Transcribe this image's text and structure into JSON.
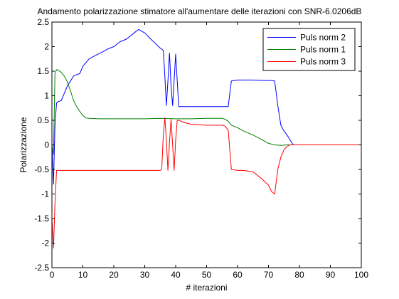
{
  "chart_data": {
    "type": "line",
    "title": "Andamento polarizzazione stimatore all'aumentare delle iterazioni con SNR-6.0206dB",
    "xlabel": "# iterazioni",
    "ylabel": "Polarizzazione",
    "xlim": [
      0,
      100
    ],
    "ylim": [
      -2.5,
      2.5
    ],
    "xticks": [
      0,
      10,
      20,
      30,
      40,
      50,
      60,
      70,
      80,
      90,
      100
    ],
    "yticks": [
      -2.5,
      -2,
      -1.5,
      -1,
      -0.5,
      0,
      0.5,
      1,
      1.5,
      2,
      2.5
    ],
    "xtick_labels": [
      "0",
      "10",
      "20",
      "30",
      "40",
      "50",
      "60",
      "70",
      "80",
      "90",
      "100"
    ],
    "ytick_labels": [
      "-2.5",
      "-2",
      "-1.5",
      "-1",
      "-0.5",
      "0",
      "0.5",
      "1",
      "1.5",
      "2",
      "2.5"
    ],
    "grid": false,
    "legend_position": "top-right",
    "series": [
      {
        "name": "Puls norm 2",
        "color": "#0000ff",
        "x": [
          0,
          0.5,
          1,
          1.5,
          2,
          3,
          4,
          5,
          6,
          7,
          8,
          9,
          10,
          12,
          14,
          16,
          18,
          20,
          22,
          24,
          26,
          27,
          28,
          30,
          32,
          35,
          35.5,
          36,
          36.5,
          37,
          37.5,
          38,
          38.5,
          39,
          39.5,
          40,
          40.5,
          41,
          45,
          50,
          55,
          57,
          57.5,
          58,
          60,
          65,
          70,
          71,
          72,
          73,
          74,
          75,
          76,
          77,
          78,
          80,
          100
        ],
        "y": [
          0,
          -0.8,
          0.4,
          0.85,
          0.88,
          0.9,
          1.05,
          1.2,
          1.3,
          1.4,
          1.43,
          1.45,
          1.6,
          1.75,
          1.82,
          1.88,
          1.95,
          2.0,
          2.1,
          2.15,
          2.25,
          2.3,
          2.35,
          2.28,
          2.15,
          1.97,
          1.95,
          1.92,
          1.4,
          0.8,
          1.3,
          1.87,
          1.2,
          0.8,
          1.3,
          1.85,
          1.3,
          0.78,
          0.78,
          0.78,
          0.78,
          0.78,
          1.05,
          1.3,
          1.32,
          1.32,
          1.31,
          1.31,
          1.3,
          0.8,
          0.4,
          0.28,
          0.2,
          0.1,
          0.0,
          0.0,
          0.0
        ]
      },
      {
        "name": "Puls norm 1",
        "color": "#008000",
        "x": [
          0,
          0.5,
          1,
          1.5,
          2,
          3,
          4,
          5,
          6,
          7,
          8,
          9,
          10,
          11,
          12,
          15,
          20,
          25,
          30,
          35,
          40,
          45,
          50,
          55,
          56,
          57,
          58,
          60,
          62,
          65,
          68,
          70,
          72,
          74,
          76,
          78,
          80,
          100
        ],
        "y": [
          0,
          -0.2,
          1.45,
          1.53,
          1.52,
          1.48,
          1.4,
          1.28,
          1.1,
          0.9,
          0.78,
          0.68,
          0.6,
          0.55,
          0.54,
          0.53,
          0.53,
          0.53,
          0.53,
          0.54,
          0.53,
          0.53,
          0.54,
          0.54,
          0.52,
          0.48,
          0.4,
          0.35,
          0.28,
          0.2,
          0.1,
          0.03,
          0.0,
          -0.01,
          0.0,
          0.0,
          0.0,
          0.0
        ]
      },
      {
        "name": "Puls norm 3",
        "color": "#ff0000",
        "x": [
          0,
          0.5,
          1,
          1.5,
          2,
          3,
          5,
          10,
          15,
          20,
          25,
          30,
          34,
          35,
          35.5,
          36,
          36.5,
          37,
          37.5,
          38,
          38.5,
          39,
          39.5,
          40,
          40.5,
          41,
          43,
          45,
          50,
          55,
          56,
          57,
          58,
          60,
          62,
          65,
          68,
          70,
          71,
          72,
          73,
          74,
          75,
          76,
          77,
          78,
          80,
          100
        ],
        "y": [
          -1.5,
          -2.1,
          -1.2,
          -0.52,
          -0.52,
          -0.52,
          -0.52,
          -0.52,
          -0.52,
          -0.52,
          -0.52,
          -0.52,
          -0.52,
          -0.52,
          -0.5,
          0.2,
          0.55,
          0.1,
          -0.52,
          0.05,
          0.52,
          0.0,
          -0.52,
          0.1,
          0.5,
          0.5,
          0.45,
          0.42,
          0.4,
          0.4,
          0.38,
          0.3,
          -0.5,
          -0.52,
          -0.52,
          -0.55,
          -0.7,
          -0.82,
          -0.95,
          -1.0,
          -0.5,
          -0.25,
          -0.1,
          -0.03,
          0.0,
          0.0,
          0.0,
          0.0
        ]
      }
    ]
  }
}
